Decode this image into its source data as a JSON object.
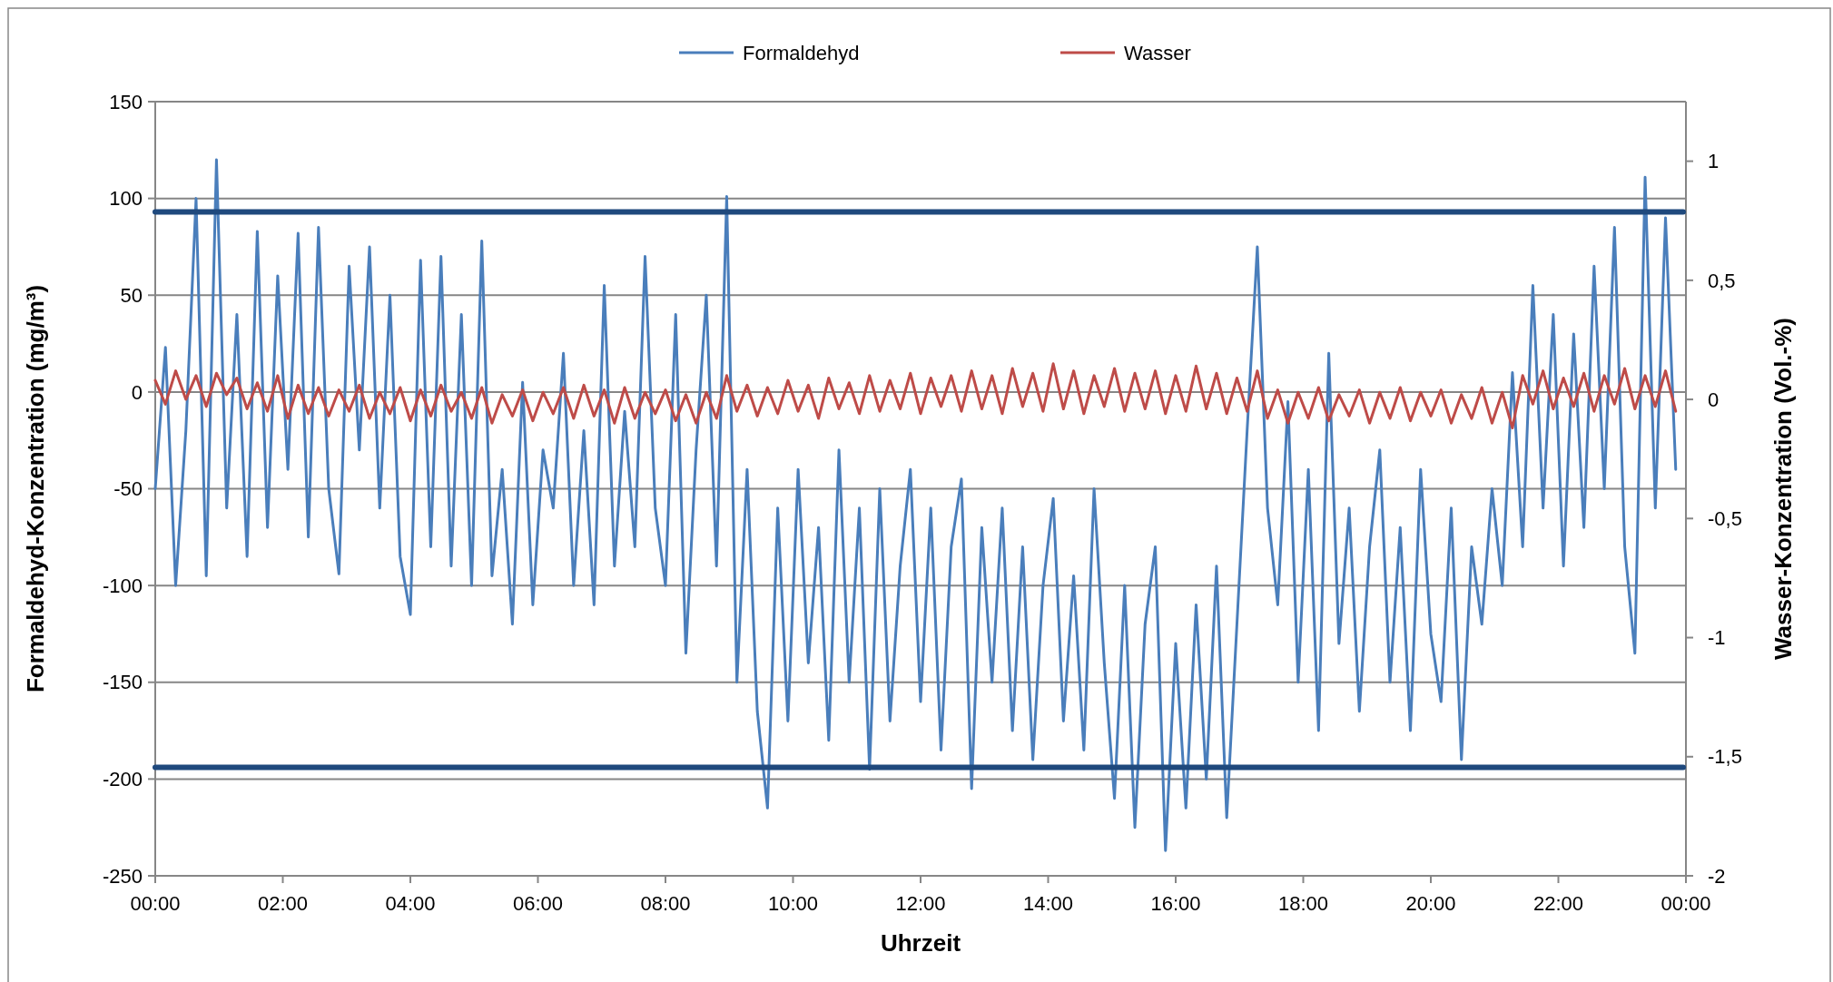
{
  "chart_data": {
    "type": "line",
    "xlabel": "Uhrzeit",
    "ylabel": "Formaldehyd-Konzentration (mg/m³)",
    "y2label": "Wasser-Konzentration (Vol.-%)",
    "x": [
      0,
      0.16,
      0.32,
      0.48,
      0.64,
      0.8,
      0.96,
      1.12,
      1.28,
      1.44,
      1.6,
      1.76,
      1.92,
      2.08,
      2.24,
      2.4,
      2.56,
      2.72,
      2.88,
      3.04,
      3.2,
      3.36,
      3.52,
      3.68,
      3.84,
      4,
      4.16,
      4.32,
      4.48,
      4.64,
      4.8,
      4.96,
      5.12,
      5.28,
      5.44,
      5.6,
      5.76,
      5.92,
      6.08,
      6.24,
      6.4,
      6.56,
      6.72,
      6.88,
      7.04,
      7.2,
      7.36,
      7.52,
      7.68,
      7.84,
      8,
      8.16,
      8.32,
      8.48,
      8.64,
      8.8,
      8.96,
      9.12,
      9.28,
      9.44,
      9.6,
      9.76,
      9.92,
      10.08,
      10.24,
      10.4,
      10.56,
      10.72,
      10.88,
      11.04,
      11.2,
      11.36,
      11.52,
      11.68,
      11.84,
      12,
      12.16,
      12.32,
      12.48,
      12.64,
      12.8,
      12.96,
      13.12,
      13.28,
      13.44,
      13.6,
      13.76,
      13.92,
      14.08,
      14.24,
      14.4,
      14.56,
      14.72,
      14.88,
      15.04,
      15.2,
      15.36,
      15.52,
      15.68,
      15.84,
      16,
      16.16,
      16.32,
      16.48,
      16.64,
      16.8,
      16.96,
      17.12,
      17.28,
      17.44,
      17.6,
      17.76,
      17.92,
      18.08,
      18.24,
      18.4,
      18.56,
      18.72,
      18.88,
      19.04,
      19.2,
      19.36,
      19.52,
      19.68,
      19.84,
      20,
      20.16,
      20.32,
      20.48,
      20.64,
      20.8,
      20.96,
      21.12,
      21.28,
      21.44,
      21.6,
      21.76,
      21.92,
      22.08,
      22.24,
      22.4,
      22.56,
      22.72,
      22.88,
      23.04,
      23.2,
      23.36,
      23.52,
      23.68,
      23.84
    ],
    "series": [
      {
        "name": "Formaldehyd",
        "color": "#4a7ebb",
        "values": [
          -50,
          23,
          -100,
          -20,
          100,
          -95,
          120,
          -60,
          40,
          -85,
          83,
          -70,
          60,
          -40,
          82,
          -75,
          85,
          -50,
          -94,
          65,
          -30,
          75,
          -60,
          50,
          -85,
          -115,
          68,
          -80,
          70,
          -90,
          40,
          -100,
          78,
          -95,
          -40,
          -120,
          5,
          -110,
          -30,
          -60,
          20,
          -100,
          -20,
          -110,
          55,
          -90,
          -10,
          -80,
          70,
          -60,
          -100,
          40,
          -135,
          -30,
          50,
          -90,
          101,
          -150,
          -40,
          -165,
          -215,
          -60,
          -170,
          -40,
          -140,
          -70,
          -180,
          -30,
          -150,
          -60,
          -195,
          -50,
          -170,
          -90,
          -40,
          -160,
          -60,
          -185,
          -80,
          -45,
          -205,
          -70,
          -150,
          -60,
          -175,
          -80,
          -190,
          -100,
          -55,
          -170,
          -95,
          -185,
          -50,
          -140,
          -210,
          -100,
          -225,
          -120,
          -80,
          -237,
          -130,
          -215,
          -110,
          -200,
          -90,
          -220,
          -120,
          -20,
          75,
          -60,
          -110,
          -5,
          -150,
          -40,
          -175,
          20,
          -130,
          -60,
          -165,
          -80,
          -30,
          -150,
          -70,
          -175,
          -40,
          -125,
          -160,
          -60,
          -190,
          -80,
          -120,
          -50,
          -100,
          10,
          -80,
          55,
          -60,
          40,
          -90,
          30,
          -70,
          65,
          -50,
          85,
          -80,
          -135,
          111,
          -60,
          90,
          -40
        ]
      },
      {
        "name": "Wasser",
        "color": "#be4b48",
        "axis": "y2",
        "values": [
          0.08,
          -0.02,
          0.12,
          0.0,
          0.1,
          -0.03,
          0.11,
          0.02,
          0.09,
          -0.04,
          0.07,
          -0.05,
          0.1,
          -0.08,
          0.06,
          -0.06,
          0.05,
          -0.07,
          0.04,
          -0.05,
          0.06,
          -0.08,
          0.03,
          -0.06,
          0.05,
          -0.09,
          0.04,
          -0.07,
          0.06,
          -0.05,
          0.03,
          -0.08,
          0.05,
          -0.1,
          0.02,
          -0.07,
          0.04,
          -0.09,
          0.03,
          -0.06,
          0.05,
          -0.08,
          0.06,
          -0.07,
          0.04,
          -0.1,
          0.05,
          -0.08,
          0.03,
          -0.06,
          0.04,
          -0.09,
          0.02,
          -0.1,
          0.03,
          -0.08,
          0.1,
          -0.05,
          0.06,
          -0.07,
          0.05,
          -0.06,
          0.08,
          -0.05,
          0.06,
          -0.08,
          0.09,
          -0.04,
          0.07,
          -0.06,
          0.1,
          -0.05,
          0.08,
          -0.04,
          0.11,
          -0.06,
          0.09,
          -0.03,
          0.1,
          -0.05,
          0.12,
          -0.04,
          0.1,
          -0.06,
          0.13,
          -0.03,
          0.11,
          -0.05,
          0.15,
          -0.04,
          0.12,
          -0.06,
          0.1,
          -0.03,
          0.13,
          -0.05,
          0.11,
          -0.04,
          0.12,
          -0.06,
          0.1,
          -0.05,
          0.14,
          -0.04,
          0.11,
          -0.06,
          0.09,
          -0.05,
          0.12,
          -0.08,
          0.04,
          -0.1,
          0.03,
          -0.08,
          0.05,
          -0.09,
          0.02,
          -0.07,
          0.04,
          -0.1,
          0.03,
          -0.08,
          0.05,
          -0.09,
          0.03,
          -0.07,
          0.04,
          -0.1,
          0.02,
          -0.08,
          0.05,
          -0.1,
          0.03,
          -0.12,
          0.1,
          -0.02,
          0.12,
          -0.04,
          0.09,
          -0.03,
          0.11,
          -0.05,
          0.1,
          -0.02,
          0.13,
          -0.04,
          0.1,
          -0.03,
          0.12,
          -0.05
        ]
      }
    ],
    "xlim": [
      0,
      24
    ],
    "xticks": [
      {
        "value": 0,
        "label": "00:00"
      },
      {
        "value": 2,
        "label": "02:00"
      },
      {
        "value": 4,
        "label": "04:00"
      },
      {
        "value": 6,
        "label": "06:00"
      },
      {
        "value": 8,
        "label": "08:00"
      },
      {
        "value": 10,
        "label": "10:00"
      },
      {
        "value": 12,
        "label": "12:00"
      },
      {
        "value": 14,
        "label": "14:00"
      },
      {
        "value": 16,
        "label": "16:00"
      },
      {
        "value": 18,
        "label": "18:00"
      },
      {
        "value": 20,
        "label": "20:00"
      },
      {
        "value": 22,
        "label": "22:00"
      },
      {
        "value": 24,
        "label": "00:00"
      }
    ],
    "ylim": [
      -250,
      150
    ],
    "yticks": [
      -250,
      -200,
      -150,
      -100,
      -50,
      0,
      50,
      100,
      150
    ],
    "y2lim": [
      -2,
      1.25
    ],
    "y2ticks": [
      -2,
      {
        "value": -1.5,
        "label": "-1,5"
      },
      -1,
      {
        "value": -0.5,
        "label": "-0,5"
      },
      0,
      {
        "value": 0.5,
        "label": "0,5"
      },
      1
    ],
    "ref_lines": [
      {
        "axis": "y",
        "value": 93,
        "color": "#1f497d"
      },
      {
        "axis": "y",
        "value": -194,
        "color": "#1f497d"
      }
    ],
    "grid": "y",
    "legend": "top",
    "marker": "none",
    "line_style": "solid"
  }
}
